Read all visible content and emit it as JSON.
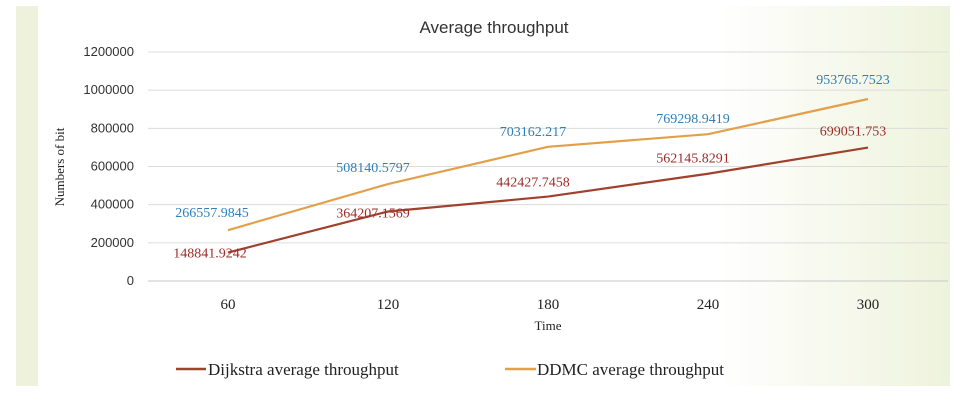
{
  "chart_data": {
    "type": "line",
    "title": "Average throughput",
    "xlabel": "Time",
    "ylabel": "Numbers of bit",
    "categories": [
      "60",
      "120",
      "180",
      "240",
      "300"
    ],
    "ylim": [
      0,
      1200000
    ],
    "yticks": [
      "0",
      "200000",
      "400000",
      "600000",
      "800000",
      "1000000",
      "1200000"
    ],
    "grid": "horizontal",
    "legend": "bottom",
    "series": [
      {
        "name": "Dijkstra average throughput",
        "color": "#a0412d",
        "label_color": "#9e2b25",
        "values": [
          148841.9242,
          364207.1569,
          442427.7458,
          562145.8291,
          699051.753
        ],
        "labels": [
          "148841.9242",
          "364207.1569",
          "442427.7458",
          "562145.8291",
          "699051.753"
        ]
      },
      {
        "name": "DDMC average throughput",
        "color": "#e3a04a",
        "label_color": "#2f7fb8",
        "values": [
          266557.9845,
          508140.5797,
          703162.217,
          769298.9419,
          953765.7523
        ],
        "labels": [
          "266557.9845",
          "508140.5797",
          "703162.217",
          "769298.9419",
          "953765.7523"
        ]
      }
    ]
  }
}
